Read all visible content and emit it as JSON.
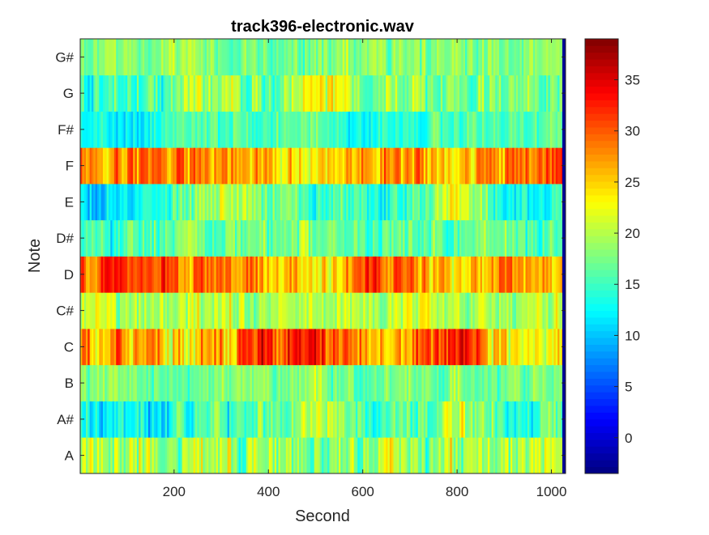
{
  "chart_data": {
    "type": "heatmap",
    "title": "track396-electronic.wav",
    "xlabel": "Second",
    "ylabel": "Note",
    "xlim": [
      1,
      1030
    ],
    "xticks": [
      200,
      400,
      600,
      800,
      1000
    ],
    "notes": [
      "A",
      "A#",
      "B",
      "C",
      "C#",
      "D",
      "D#",
      "E",
      "F",
      "F#",
      "G",
      "G#"
    ],
    "colorbar": {
      "colormap": "jet",
      "clim": [
        -3.5,
        39
      ],
      "ticks": [
        0,
        5,
        10,
        15,
        20,
        25,
        30,
        35
      ]
    },
    "series": [
      {
        "name": "A",
        "anchors": [
          [
            0,
            21
          ],
          [
            100,
            20
          ],
          [
            200,
            19
          ],
          [
            300,
            19
          ],
          [
            400,
            20
          ],
          [
            500,
            20
          ],
          [
            600,
            19
          ],
          [
            700,
            20
          ],
          [
            800,
            19
          ],
          [
            900,
            19
          ],
          [
            1000,
            20
          ],
          [
            1030,
            21
          ]
        ],
        "variation": 7
      },
      {
        "name": "A#",
        "anchors": [
          [
            0,
            12
          ],
          [
            100,
            11
          ],
          [
            200,
            13
          ],
          [
            300,
            14
          ],
          [
            400,
            17
          ],
          [
            500,
            21
          ],
          [
            600,
            15
          ],
          [
            700,
            14
          ],
          [
            800,
            21
          ],
          [
            900,
            15
          ],
          [
            1000,
            16
          ],
          [
            1030,
            16
          ]
        ],
        "variation": 6
      },
      {
        "name": "B",
        "anchors": [
          [
            0,
            17
          ],
          [
            100,
            17
          ],
          [
            200,
            18
          ],
          [
            300,
            18
          ],
          [
            400,
            18
          ],
          [
            500,
            19
          ],
          [
            600,
            16
          ],
          [
            700,
            17
          ],
          [
            800,
            18
          ],
          [
            900,
            17
          ],
          [
            1000,
            18
          ],
          [
            1030,
            18
          ]
        ],
        "variation": 4
      },
      {
        "name": "C",
        "anchors": [
          [
            0,
            27
          ],
          [
            100,
            27
          ],
          [
            200,
            25
          ],
          [
            300,
            27
          ],
          [
            400,
            31
          ],
          [
            500,
            33
          ],
          [
            600,
            26
          ],
          [
            700,
            27
          ],
          [
            800,
            33
          ],
          [
            900,
            24
          ],
          [
            1000,
            24
          ],
          [
            1030,
            24
          ]
        ],
        "variation": 7
      },
      {
        "name": "C#",
        "anchors": [
          [
            0,
            20
          ],
          [
            100,
            20
          ],
          [
            200,
            20
          ],
          [
            300,
            21
          ],
          [
            400,
            19
          ],
          [
            500,
            20
          ],
          [
            600,
            21
          ],
          [
            700,
            21
          ],
          [
            800,
            19
          ],
          [
            900,
            20
          ],
          [
            1000,
            20
          ],
          [
            1030,
            20
          ]
        ],
        "variation": 5
      },
      {
        "name": "D",
        "anchors": [
          [
            0,
            31
          ],
          [
            100,
            31
          ],
          [
            200,
            28
          ],
          [
            300,
            27
          ],
          [
            400,
            28
          ],
          [
            500,
            21
          ],
          [
            600,
            30
          ],
          [
            700,
            27
          ],
          [
            800,
            23
          ],
          [
            900,
            29
          ],
          [
            1000,
            27
          ],
          [
            1030,
            27
          ]
        ],
        "variation": 6
      },
      {
        "name": "D#",
        "anchors": [
          [
            0,
            15
          ],
          [
            100,
            15
          ],
          [
            200,
            17
          ],
          [
            300,
            17
          ],
          [
            400,
            18
          ],
          [
            500,
            18
          ],
          [
            600,
            16
          ],
          [
            700,
            17
          ],
          [
            800,
            15
          ],
          [
            900,
            16
          ],
          [
            1000,
            16
          ],
          [
            1030,
            16
          ]
        ],
        "variation": 5
      },
      {
        "name": "E",
        "anchors": [
          [
            0,
            11
          ],
          [
            100,
            11
          ],
          [
            200,
            16
          ],
          [
            300,
            21
          ],
          [
            400,
            18
          ],
          [
            500,
            15
          ],
          [
            600,
            14
          ],
          [
            700,
            16
          ],
          [
            800,
            23
          ],
          [
            900,
            13
          ],
          [
            1000,
            14
          ],
          [
            1030,
            14
          ]
        ],
        "variation": 5
      },
      {
        "name": "F",
        "anchors": [
          [
            0,
            29
          ],
          [
            100,
            28
          ],
          [
            200,
            29
          ],
          [
            300,
            27
          ],
          [
            400,
            26
          ],
          [
            500,
            23
          ],
          [
            600,
            28
          ],
          [
            700,
            27
          ],
          [
            800,
            25
          ],
          [
            900,
            28
          ],
          [
            1000,
            30
          ],
          [
            1030,
            30
          ]
        ],
        "variation": 6
      },
      {
        "name": "F#",
        "anchors": [
          [
            0,
            12
          ],
          [
            100,
            12
          ],
          [
            200,
            15
          ],
          [
            300,
            16
          ],
          [
            400,
            16
          ],
          [
            500,
            17
          ],
          [
            600,
            13
          ],
          [
            700,
            16
          ],
          [
            800,
            15
          ],
          [
            900,
            16
          ],
          [
            1000,
            16
          ],
          [
            1030,
            16
          ]
        ],
        "variation": 4
      },
      {
        "name": "G",
        "anchors": [
          [
            0,
            14
          ],
          [
            100,
            15
          ],
          [
            200,
            18
          ],
          [
            300,
            20
          ],
          [
            400,
            15
          ],
          [
            500,
            24
          ],
          [
            600,
            18
          ],
          [
            700,
            18
          ],
          [
            800,
            17
          ],
          [
            900,
            18
          ],
          [
            1000,
            18
          ],
          [
            1030,
            18
          ]
        ],
        "variation": 6
      },
      {
        "name": "G#",
        "anchors": [
          [
            0,
            18
          ],
          [
            100,
            18
          ],
          [
            200,
            19
          ],
          [
            300,
            18
          ],
          [
            400,
            17
          ],
          [
            500,
            18
          ],
          [
            600,
            19
          ],
          [
            700,
            18
          ],
          [
            800,
            18
          ],
          [
            900,
            18
          ],
          [
            1000,
            18
          ],
          [
            1030,
            18
          ]
        ],
        "variation": 4
      }
    ]
  }
}
